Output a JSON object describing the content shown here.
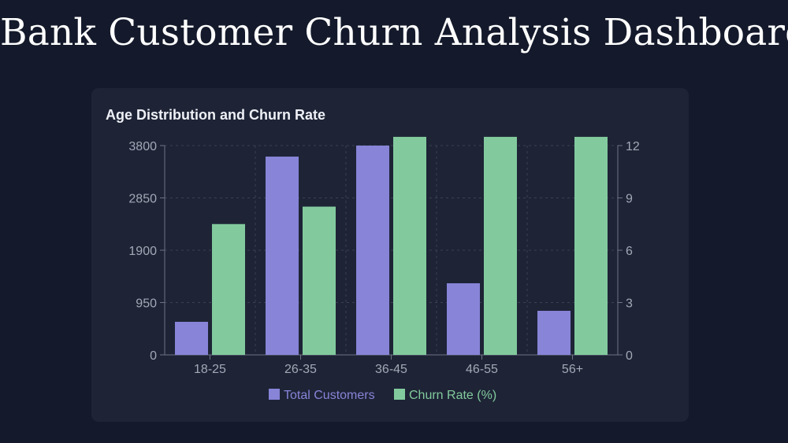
{
  "page": {
    "title": "Bank Customer Churn Analysis Dashboard"
  },
  "card": {
    "title": "Age Distribution and Churn Rate"
  },
  "colors": {
    "background": "#141a2b",
    "card": "#1e2436",
    "total_customers": "#8884d8",
    "churn_rate": "#82ca9d"
  },
  "chart_data": {
    "type": "bar",
    "title": "Age Distribution and Churn Rate",
    "categories": [
      "18-25",
      "26-35",
      "36-45",
      "46-55",
      "56+"
    ],
    "series": [
      {
        "name": "Total Customers",
        "axis": "left",
        "color": "#8884d8",
        "values": [
          600,
          3600,
          3800,
          1300,
          800
        ]
      },
      {
        "name": "Churn Rate (%)",
        "axis": "right",
        "color": "#82ca9d",
        "values": [
          7.5,
          8.5,
          12.5,
          12.5,
          12.5
        ]
      }
    ],
    "left_axis": {
      "ylim": [
        0,
        3800
      ],
      "ticks": [
        "0",
        "950",
        "1900",
        "2850",
        "3800"
      ]
    },
    "right_axis": {
      "ylim": [
        0,
        12
      ],
      "ticks": [
        "0",
        "3",
        "6",
        "9",
        "12"
      ]
    },
    "legend_position": "bottom",
    "grid": true
  }
}
